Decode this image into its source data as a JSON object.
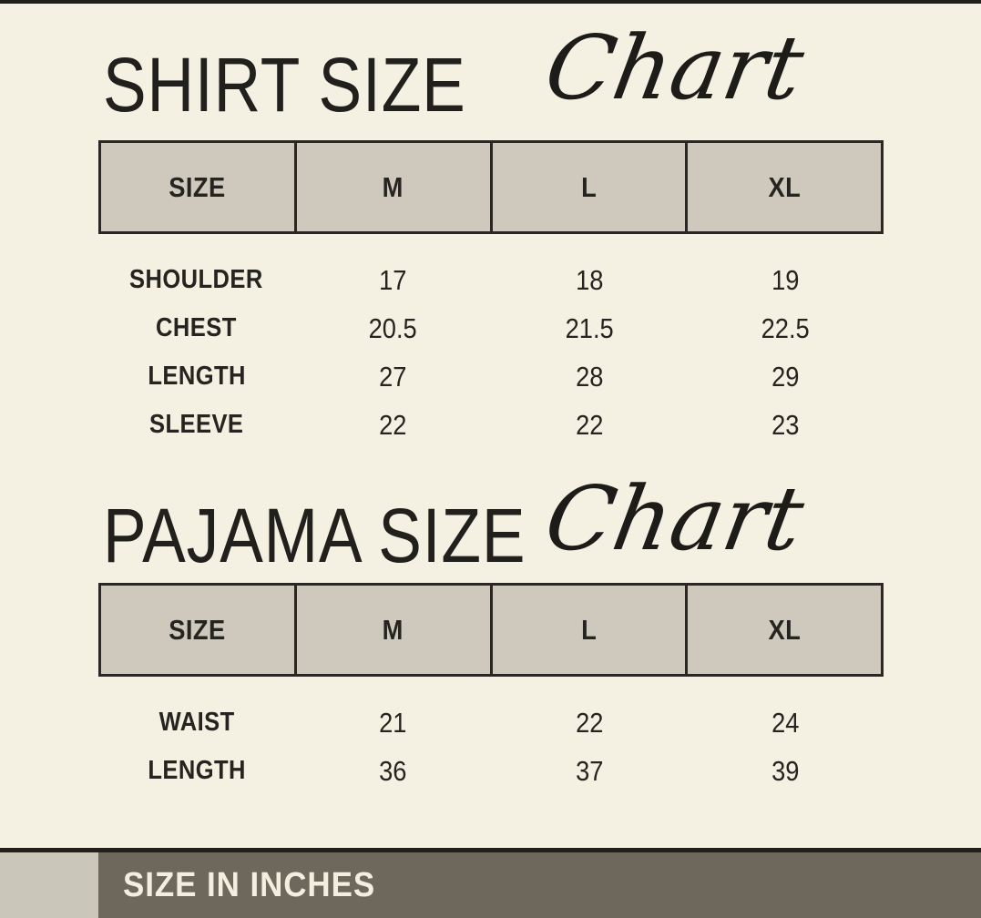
{
  "page": {
    "background": "#f4f0e2",
    "text_color": "#262420",
    "border_color": "#2b2824",
    "header_cell_color": "#cec9bc",
    "footer_bar_color": "#6d675c",
    "footer_block_color": "#cac6b9",
    "footer_text_color": "#f2eee0"
  },
  "sections": [
    {
      "title": "SHIRT SIZE",
      "script_word": "Chart"
    },
    {
      "title": "PAJAMA SIZE",
      "script_word": "Chart"
    }
  ],
  "footer": {
    "label": "SIZE IN INCHES"
  },
  "chart_data": [
    {
      "type": "table",
      "title": "SHIRT SIZE Chart",
      "units": "inches",
      "columns": [
        "SIZE",
        "M",
        "L",
        "XL"
      ],
      "rows": [
        [
          "SHOULDER",
          17,
          18,
          19
        ],
        [
          "CHEST",
          20.5,
          21.5,
          22.5
        ],
        [
          "LENGTH",
          27,
          28,
          29
        ],
        [
          "SLEEVE",
          22,
          22,
          23
        ]
      ]
    },
    {
      "type": "table",
      "title": "PAJAMA SIZE Chart",
      "units": "inches",
      "columns": [
        "SIZE",
        "M",
        "L",
        "XL"
      ],
      "rows": [
        [
          "WAIST",
          21,
          22,
          24
        ],
        [
          "LENGTH",
          36,
          37,
          39
        ]
      ]
    }
  ]
}
